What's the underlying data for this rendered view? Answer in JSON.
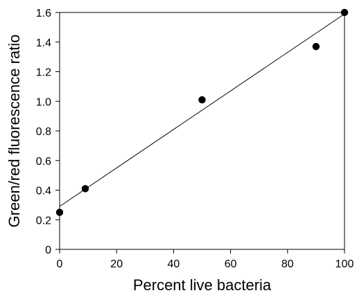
{
  "chart_data": {
    "type": "scatter",
    "title": "",
    "xlabel": "Percent live bacteria",
    "ylabel": "Green/red fluorescence ratio",
    "xlim": [
      0,
      100
    ],
    "ylim": [
      0,
      1.6
    ],
    "x_ticks": [
      "0",
      "20",
      "40",
      "60",
      "80",
      "100"
    ],
    "y_ticks": [
      "0",
      "0.2",
      "0.4",
      "0.6",
      "0.8",
      "1.0",
      "1.2",
      "1.4",
      "1.6"
    ],
    "grid": false,
    "legend": "none",
    "series": [
      {
        "points": [
          {
            "x": 0,
            "y": 0.25
          },
          {
            "x": 9,
            "y": 0.41
          },
          {
            "x": 50,
            "y": 1.01
          },
          {
            "x": 90,
            "y": 1.37
          },
          {
            "x": 100,
            "y": 1.6
          }
        ],
        "color": "#000000"
      }
    ],
    "fit_line": {
      "x": [
        0,
        100
      ],
      "y": [
        0.29,
        1.59
      ],
      "color": "#000000"
    }
  }
}
